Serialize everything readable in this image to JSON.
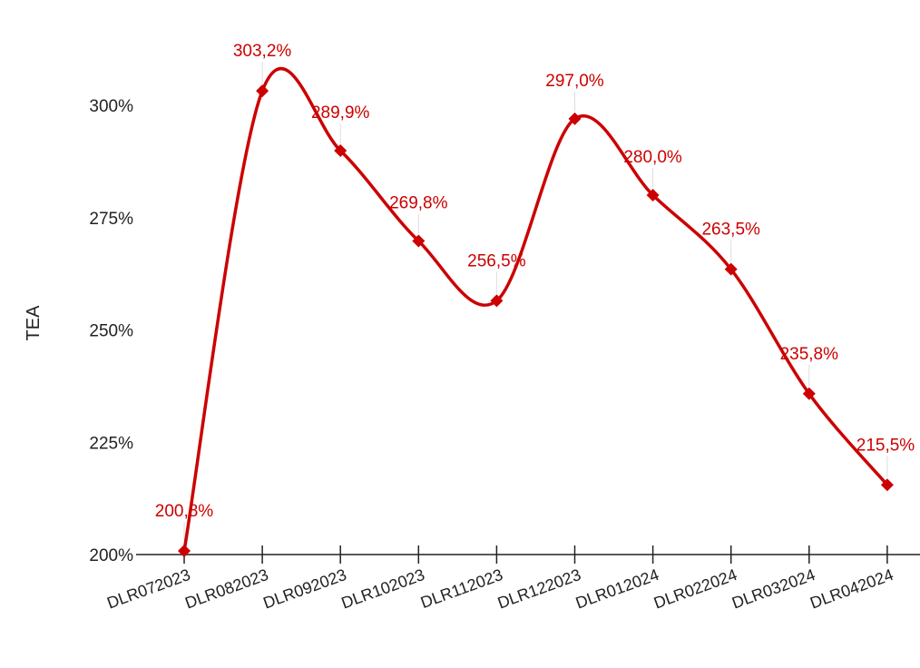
{
  "chart_data": {
    "type": "line",
    "title": "",
    "xlabel": "",
    "ylabel": "TEA",
    "categories": [
      "DLR072023",
      "DLR082023",
      "DLR092023",
      "DLR102023",
      "DLR112023",
      "DLR122023",
      "DLR012024",
      "DLR022024",
      "DLR032024",
      "DLR042024"
    ],
    "series": [
      {
        "values": [
          200.8,
          303.2,
          289.9,
          269.8,
          256.5,
          297.0,
          280.0,
          263.5,
          235.8,
          215.5
        ],
        "labels": [
          "200,8%",
          "303,2%",
          "289,9%",
          "269,8%",
          "256,5%",
          "297,0%",
          "280,0%",
          "263,5%",
          "235,8%",
          "215,5%"
        ],
        "color": "#cc0000",
        "marker": "diamond",
        "smooth": true
      }
    ],
    "ylim": [
      200,
      310
    ],
    "yticks": [
      200,
      225,
      250,
      275,
      300
    ],
    "ytick_labels": [
      "200%",
      "225%",
      "250%",
      "275%",
      "300%"
    ],
    "grid": false,
    "legend": "none"
  }
}
